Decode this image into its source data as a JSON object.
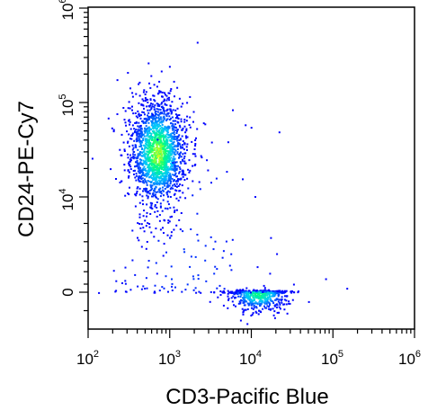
{
  "chart_data": {
    "type": "scatter",
    "style": "flow-cytometry density dot plot",
    "xlabel": "CD3-Pacific Blue",
    "ylabel": "CD24-PE-Cy7",
    "x_scale": "log",
    "y_scale": "biexponential",
    "x_range": [
      100,
      1000000
    ],
    "y_range": [
      -600,
      1000000
    ],
    "x_ticks": [
      {
        "base": "10",
        "exp": "2",
        "value": 100
      },
      {
        "base": "10",
        "exp": "3",
        "value": 1000
      },
      {
        "base": "10",
        "exp": "4",
        "value": 10000
      },
      {
        "base": "10",
        "exp": "5",
        "value": 100000
      },
      {
        "base": "10",
        "exp": "6",
        "value": 1000000
      }
    ],
    "y_ticks": [
      {
        "base": "",
        "exp": "",
        "label": "0",
        "value": 0
      },
      {
        "base": "10",
        "exp": "4",
        "label": "",
        "value": 10000
      },
      {
        "base": "10",
        "exp": "5",
        "label": "",
        "value": 100000
      },
      {
        "base": "10",
        "exp": "6",
        "label": "",
        "value": 1000000
      }
    ],
    "grid": false,
    "legend": "none",
    "colormap": [
      "#0000ff",
      "#00c8ff",
      "#00ff80",
      "#ffff00"
    ],
    "populations": [
      {
        "x_center": 700,
        "x_spread_decades": 0.17,
        "y_center": 30000,
        "y_spread_decades": 0.28,
        "relative_events": 0.7,
        "peak_density": 1.0
      },
      {
        "x_center": 12000,
        "x_spread_decades": 0.18,
        "y_center": 0,
        "y_spread": 150,
        "relative_events": 0.24,
        "peak_density": 0.8
      },
      {
        "x_center": 1500,
        "x_spread_decades": 0.6,
        "y_center": 2000,
        "y_spread_decades": 1.0,
        "relative_events": 0.06,
        "peak_density": 0.1
      }
    ]
  }
}
